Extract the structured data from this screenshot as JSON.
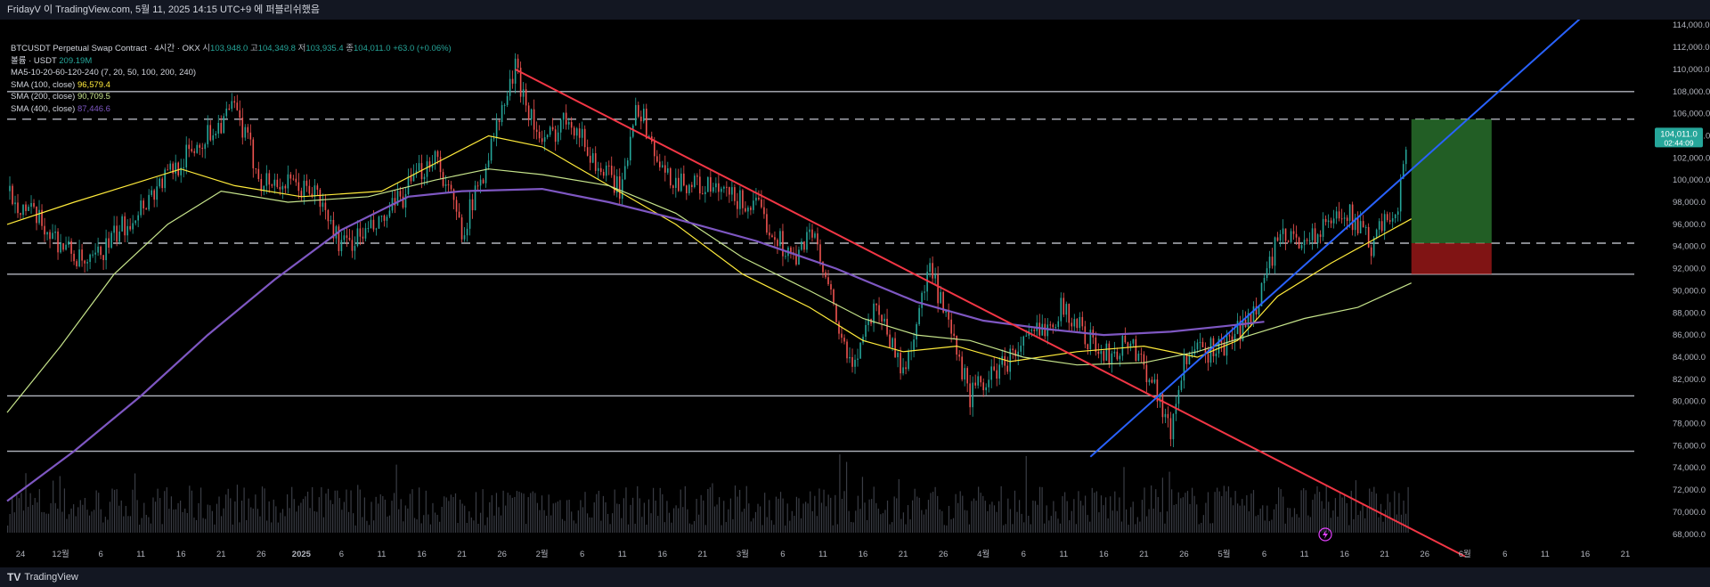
{
  "header": {
    "title": "FridayV 이 TradingView.com, 5월 11, 2025 14:15 UTC+9 에 퍼블리쉬했음"
  },
  "footer": {
    "brand": "TradingView",
    "brand_mark": "TV"
  },
  "legend": {
    "symbol": "BTCUSDT Perpetual Swap Contract · 4시간 · OKX",
    "ohlc": [
      {
        "k": "시",
        "v": "103,948.0"
      },
      {
        "k": "고",
        "v": "104,349.8"
      },
      {
        "k": "저",
        "v": "103,935.4"
      },
      {
        "k": "종",
        "v": "104,011.0"
      }
    ],
    "change": "+63.0 (+0.06%)",
    "volume_label": "볼륨 · USDT",
    "volume_value": "209.19M",
    "ma_label": "MA5-10-20-60-120-240 (7, 20, 50, 100, 200, 240)",
    "sma100_label": "SMA (100, close)",
    "sma100_value": "96,579.4",
    "sma200_label": "SMA (200, close)",
    "sma200_value": "90,709.5",
    "sma400_label": "SMA (400, close)",
    "sma400_value": "87,446.6"
  },
  "price_badge": {
    "price": "104,011.0",
    "countdown": "02:44:09"
  },
  "chart_data": {
    "type": "candlestick",
    "symbol": "BTCUSDT",
    "interval": "4시간",
    "ylim": [
      67500,
      114500
    ],
    "y_ticks": [
      68000,
      70000,
      72000,
      74000,
      76000,
      78000,
      80000,
      82000,
      84000,
      86000,
      88000,
      90000,
      92000,
      94000,
      96000,
      98000,
      100000,
      102000,
      104000,
      106000,
      108000,
      110000,
      112000,
      114000
    ],
    "x_ticks": [
      "24",
      "12월",
      "6",
      "11",
      "16",
      "21",
      "26",
      "2025",
      "6",
      "11",
      "16",
      "21",
      "26",
      "2월",
      "6",
      "11",
      "16",
      "21",
      "3월",
      "6",
      "11",
      "16",
      "21",
      "26",
      "4월",
      "6",
      "11",
      "16",
      "21",
      "26",
      "5월",
      "6",
      "11",
      "16",
      "21",
      "26",
      "6월",
      "6",
      "11",
      "16",
      "21"
    ],
    "price_path": [
      [
        0,
        99000
      ],
      [
        6,
        92000
      ],
      [
        12,
        100500
      ],
      [
        17,
        106500
      ],
      [
        19,
        100000
      ],
      [
        23,
        99000
      ],
      [
        25,
        94000
      ],
      [
        28,
        96000
      ],
      [
        32,
        102500
      ],
      [
        34,
        95500
      ],
      [
        35,
        98500
      ],
      [
        38,
        110000
      ],
      [
        40,
        103000
      ],
      [
        42,
        106000
      ],
      [
        44,
        101500
      ],
      [
        46,
        99000
      ],
      [
        47,
        107500
      ],
      [
        49,
        100500
      ],
      [
        53,
        99000
      ],
      [
        56,
        97500
      ],
      [
        59,
        92500
      ],
      [
        60,
        96000
      ],
      [
        63,
        83000
      ],
      [
        65,
        89000
      ],
      [
        67,
        82500
      ],
      [
        69,
        92000
      ],
      [
        70,
        88000
      ],
      [
        72,
        80500
      ],
      [
        75,
        84000
      ],
      [
        79,
        88500
      ],
      [
        82,
        84000
      ],
      [
        84,
        85500
      ],
      [
        86,
        81000
      ],
      [
        87,
        77000
      ],
      [
        88,
        84000
      ],
      [
        91,
        85000
      ],
      [
        93,
        87500
      ],
      [
        94,
        91000
      ],
      [
        95,
        94500
      ],
      [
        98,
        95000
      ],
      [
        100,
        97500
      ],
      [
        102,
        94000
      ],
      [
        104,
        98000
      ],
      [
        104.8,
        104000
      ]
    ],
    "series": [
      {
        "name": "SMA (100, close)",
        "color": "#ffeb3b",
        "value": 96579.4,
        "points": [
          [
            0,
            96000
          ],
          [
            5,
            98000
          ],
          [
            9,
            99500
          ],
          [
            13,
            101000
          ],
          [
            17,
            99500
          ],
          [
            22,
            98500
          ],
          [
            28,
            99000
          ],
          [
            32,
            101500
          ],
          [
            36,
            104000
          ],
          [
            40,
            103000
          ],
          [
            45,
            99500
          ],
          [
            50,
            96000
          ],
          [
            55,
            91500
          ],
          [
            60,
            88500
          ],
          [
            64,
            85500
          ],
          [
            67,
            84500
          ],
          [
            71,
            85000
          ],
          [
            75,
            83600
          ],
          [
            80,
            84500
          ],
          [
            85,
            85000
          ],
          [
            89,
            84000
          ],
          [
            92,
            85500
          ],
          [
            95,
            89500
          ],
          [
            99,
            92500
          ],
          [
            102,
            94500
          ],
          [
            105,
            96500
          ]
        ]
      },
      {
        "name": "SMA (200, close)",
        "color": "#c6e48b",
        "value": 90709.5,
        "points": [
          [
            0,
            79000
          ],
          [
            4,
            85000
          ],
          [
            8,
            91500
          ],
          [
            12,
            96000
          ],
          [
            16,
            99000
          ],
          [
            21,
            98000
          ],
          [
            27,
            98500
          ],
          [
            32,
            100000
          ],
          [
            36,
            101000
          ],
          [
            40,
            100500
          ],
          [
            45,
            99500
          ],
          [
            50,
            97000
          ],
          [
            55,
            93000
          ],
          [
            60,
            90000
          ],
          [
            64,
            87500
          ],
          [
            68,
            86000
          ],
          [
            72,
            85500
          ],
          [
            76,
            84000
          ],
          [
            80,
            83300
          ],
          [
            85,
            83500
          ],
          [
            89,
            84500
          ],
          [
            93,
            86000
          ],
          [
            97,
            87500
          ],
          [
            101,
            88500
          ],
          [
            105,
            90700
          ]
        ]
      },
      {
        "name": "SMA (400, close)",
        "color": "#7e57c2",
        "value": 87446.6,
        "points": [
          [
            0,
            71000
          ],
          [
            5,
            75500
          ],
          [
            10,
            80500
          ],
          [
            15,
            86000
          ],
          [
            20,
            91000
          ],
          [
            25,
            95500
          ],
          [
            30,
            98500
          ],
          [
            34,
            99000
          ],
          [
            40,
            99200
          ],
          [
            45,
            98000
          ],
          [
            50,
            96500
          ],
          [
            56,
            94500
          ],
          [
            62,
            92000
          ],
          [
            68,
            89000
          ],
          [
            73,
            87300
          ],
          [
            78,
            86500
          ],
          [
            82,
            86000
          ],
          [
            87,
            86300
          ],
          [
            91,
            86800
          ],
          [
            94,
            87200
          ]
        ]
      }
    ],
    "horizontal_lines": [
      {
        "y": 108000,
        "style": "solid"
      },
      {
        "y": 105500,
        "style": "dashed"
      },
      {
        "y": 94300,
        "style": "dashed"
      },
      {
        "y": 91500,
        "style": "solid"
      },
      {
        "y": 80500,
        "style": "solid"
      },
      {
        "y": 75500,
        "style": "solid"
      }
    ],
    "trendlines": [
      {
        "name": "resistance",
        "color": "#f23645",
        "from": [
          38,
          110000
        ],
        "to": [
          109,
          66000
        ]
      },
      {
        "name": "support",
        "color": "#2962ff",
        "from": [
          81,
          75000
        ],
        "to": [
          118,
          115000
        ]
      }
    ],
    "position_box": {
      "entry": 94300,
      "target": 105500,
      "stop": 91500,
      "x_start": 105,
      "x_end": 111
    },
    "last_price": 104011.0
  }
}
